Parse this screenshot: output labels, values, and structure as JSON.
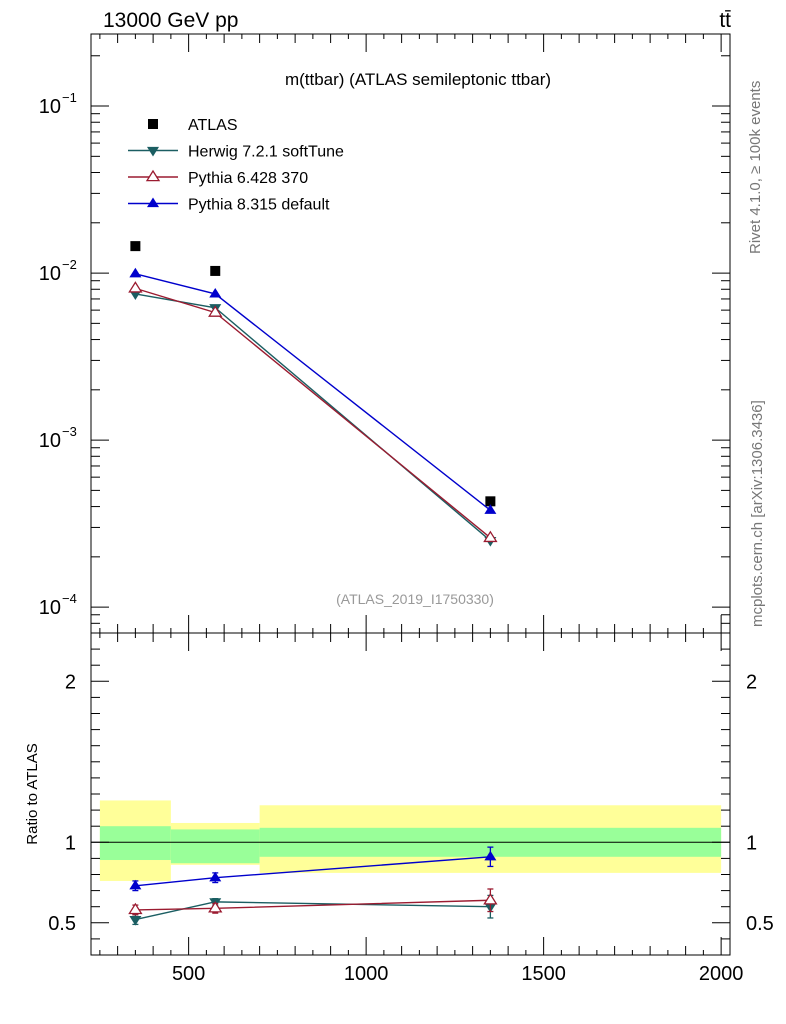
{
  "header": {
    "left": "13000 GeV pp",
    "right": "tt̄"
  },
  "side": {
    "top": "Rivet 4.1.0, ≥ 100k events",
    "bottom": "mcplots.cern.ch [arXiv:1306.3436]"
  },
  "colors": {
    "atlas": "#000000",
    "herwig": "#1b5e62",
    "pythia6": "#9b1b30",
    "pythia8": "#0000cc",
    "band_inner": "#99ff99",
    "band_outer": "#ffff99"
  },
  "chart_data": [
    {
      "type": "scatter",
      "panel": "main",
      "title": "m(ttbar) (ATLAS semileptonic ttbar)",
      "watermark": "(ATLAS_2019_I1750330)",
      "xlim": [
        225,
        2025
      ],
      "ylim": [
        7e-05,
        0.27
      ],
      "yscale": "log",
      "xlabel": "",
      "ylabel": "",
      "x_ticks": [
        500,
        1000,
        1500,
        2000
      ],
      "y_ticks": [
        {
          "value": 0.0001,
          "label": "10",
          "exp": "−4"
        },
        {
          "value": 0.001,
          "label": "10",
          "exp": "−3"
        },
        {
          "value": 0.01,
          "label": "10",
          "exp": "−2"
        },
        {
          "value": 0.1,
          "label": "10",
          "exp": "−1"
        }
      ],
      "legend_position": "top-left",
      "series": [
        {
          "name": "ATLAS",
          "key": "atlas",
          "marker": "square",
          "line": false,
          "x": [
            350,
            575,
            1350
          ],
          "y": [
            0.0145,
            0.0103,
            0.00043
          ]
        },
        {
          "name": "Herwig 7.2.1 softTune",
          "key": "herwig",
          "marker": "tri-down",
          "line": true,
          "x": [
            350,
            575,
            1350
          ],
          "y": [
            0.0075,
            0.0062,
            0.00025
          ]
        },
        {
          "name": "Pythia 6.428 370",
          "key": "pythia6",
          "marker": "tri-up-open",
          "line": true,
          "x": [
            350,
            575,
            1350
          ],
          "y": [
            0.0081,
            0.0058,
            0.00026
          ]
        },
        {
          "name": "Pythia 8.315 default",
          "key": "pythia8",
          "marker": "tri-up",
          "line": true,
          "x": [
            350,
            575,
            1350
          ],
          "y": [
            0.0099,
            0.0075,
            0.00038
          ]
        }
      ]
    },
    {
      "type": "scatter",
      "panel": "ratio",
      "ylabel": "Ratio to ATLAS",
      "xlabel": "",
      "xlim": [
        225,
        2025
      ],
      "ylim": [
        0.3,
        2.3
      ],
      "x_ticks": [
        500,
        1000,
        1500,
        2000
      ],
      "y_ticks": [
        0.5,
        1,
        2
      ],
      "bands": [
        {
          "x0": 250,
          "x1": 450,
          "inner": [
            0.89,
            1.1
          ],
          "outer": [
            0.76,
            1.26
          ]
        },
        {
          "x0": 450,
          "x1": 700,
          "inner": [
            0.87,
            1.08
          ],
          "outer": [
            0.86,
            1.12
          ]
        },
        {
          "x0": 700,
          "x1": 2000,
          "inner": [
            0.91,
            1.09
          ],
          "outer": [
            0.81,
            1.23
          ]
        }
      ],
      "series": [
        {
          "name": "Herwig 7.2.1 softTune",
          "key": "herwig",
          "marker": "tri-down",
          "x": [
            350,
            575,
            1350
          ],
          "y": [
            0.52,
            0.63,
            0.6
          ],
          "err": [
            0.03,
            0.02,
            0.07
          ]
        },
        {
          "name": "Pythia 6.428 370",
          "key": "pythia6",
          "marker": "tri-up-open",
          "x": [
            350,
            575,
            1350
          ],
          "y": [
            0.58,
            0.59,
            0.64
          ],
          "err": [
            0.03,
            0.03,
            0.07
          ]
        },
        {
          "name": "Pythia 8.315 default",
          "key": "pythia8",
          "marker": "tri-up",
          "x": [
            350,
            575,
            1350
          ],
          "y": [
            0.73,
            0.78,
            0.91
          ],
          "err": [
            0.03,
            0.03,
            0.06
          ]
        }
      ]
    }
  ]
}
